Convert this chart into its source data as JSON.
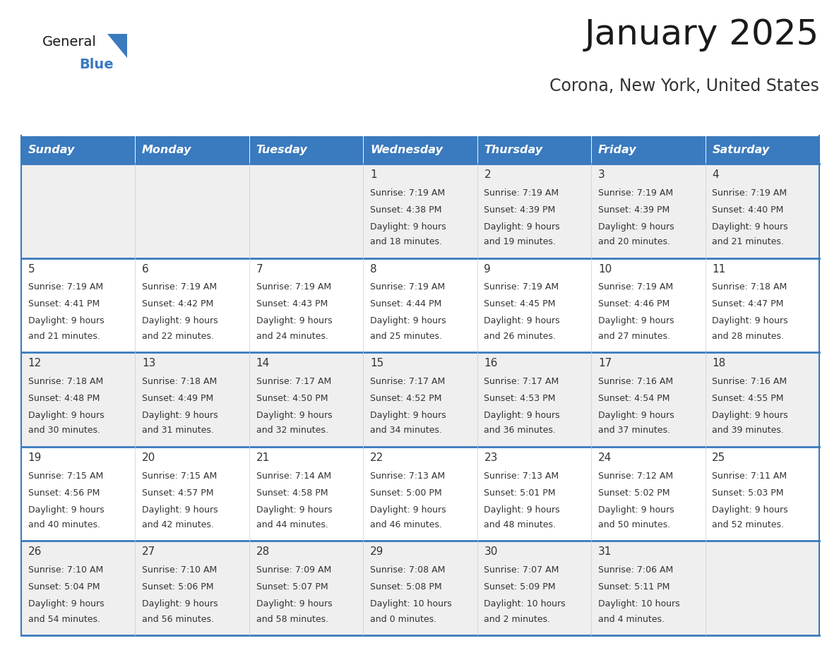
{
  "title": "January 2025",
  "subtitle": "Corona, New York, United States",
  "days_of_week": [
    "Sunday",
    "Monday",
    "Tuesday",
    "Wednesday",
    "Thursday",
    "Friday",
    "Saturday"
  ],
  "header_bg": "#3a7abf",
  "header_text_color": "#ffffff",
  "cell_bg_odd": "#efefef",
  "cell_bg_even": "#ffffff",
  "cell_text_color": "#333333",
  "grid_color": "#3a7abf",
  "separator_color": "#3a7abf",
  "calendar_data": [
    [
      {
        "day": "",
        "sunrise": "",
        "sunset": "",
        "daylight": ""
      },
      {
        "day": "",
        "sunrise": "",
        "sunset": "",
        "daylight": ""
      },
      {
        "day": "",
        "sunrise": "",
        "sunset": "",
        "daylight": ""
      },
      {
        "day": "1",
        "sunrise": "7:19 AM",
        "sunset": "4:38 PM",
        "daylight": "9 hours\nand 18 minutes."
      },
      {
        "day": "2",
        "sunrise": "7:19 AM",
        "sunset": "4:39 PM",
        "daylight": "9 hours\nand 19 minutes."
      },
      {
        "day": "3",
        "sunrise": "7:19 AM",
        "sunset": "4:39 PM",
        "daylight": "9 hours\nand 20 minutes."
      },
      {
        "day": "4",
        "sunrise": "7:19 AM",
        "sunset": "4:40 PM",
        "daylight": "9 hours\nand 21 minutes."
      }
    ],
    [
      {
        "day": "5",
        "sunrise": "7:19 AM",
        "sunset": "4:41 PM",
        "daylight": "9 hours\nand 21 minutes."
      },
      {
        "day": "6",
        "sunrise": "7:19 AM",
        "sunset": "4:42 PM",
        "daylight": "9 hours\nand 22 minutes."
      },
      {
        "day": "7",
        "sunrise": "7:19 AM",
        "sunset": "4:43 PM",
        "daylight": "9 hours\nand 24 minutes."
      },
      {
        "day": "8",
        "sunrise": "7:19 AM",
        "sunset": "4:44 PM",
        "daylight": "9 hours\nand 25 minutes."
      },
      {
        "day": "9",
        "sunrise": "7:19 AM",
        "sunset": "4:45 PM",
        "daylight": "9 hours\nand 26 minutes."
      },
      {
        "day": "10",
        "sunrise": "7:19 AM",
        "sunset": "4:46 PM",
        "daylight": "9 hours\nand 27 minutes."
      },
      {
        "day": "11",
        "sunrise": "7:18 AM",
        "sunset": "4:47 PM",
        "daylight": "9 hours\nand 28 minutes."
      }
    ],
    [
      {
        "day": "12",
        "sunrise": "7:18 AM",
        "sunset": "4:48 PM",
        "daylight": "9 hours\nand 30 minutes."
      },
      {
        "day": "13",
        "sunrise": "7:18 AM",
        "sunset": "4:49 PM",
        "daylight": "9 hours\nand 31 minutes."
      },
      {
        "day": "14",
        "sunrise": "7:17 AM",
        "sunset": "4:50 PM",
        "daylight": "9 hours\nand 32 minutes."
      },
      {
        "day": "15",
        "sunrise": "7:17 AM",
        "sunset": "4:52 PM",
        "daylight": "9 hours\nand 34 minutes."
      },
      {
        "day": "16",
        "sunrise": "7:17 AM",
        "sunset": "4:53 PM",
        "daylight": "9 hours\nand 36 minutes."
      },
      {
        "day": "17",
        "sunrise": "7:16 AM",
        "sunset": "4:54 PM",
        "daylight": "9 hours\nand 37 minutes."
      },
      {
        "day": "18",
        "sunrise": "7:16 AM",
        "sunset": "4:55 PM",
        "daylight": "9 hours\nand 39 minutes."
      }
    ],
    [
      {
        "day": "19",
        "sunrise": "7:15 AM",
        "sunset": "4:56 PM",
        "daylight": "9 hours\nand 40 minutes."
      },
      {
        "day": "20",
        "sunrise": "7:15 AM",
        "sunset": "4:57 PM",
        "daylight": "9 hours\nand 42 minutes."
      },
      {
        "day": "21",
        "sunrise": "7:14 AM",
        "sunset": "4:58 PM",
        "daylight": "9 hours\nand 44 minutes."
      },
      {
        "day": "22",
        "sunrise": "7:13 AM",
        "sunset": "5:00 PM",
        "daylight": "9 hours\nand 46 minutes."
      },
      {
        "day": "23",
        "sunrise": "7:13 AM",
        "sunset": "5:01 PM",
        "daylight": "9 hours\nand 48 minutes."
      },
      {
        "day": "24",
        "sunrise": "7:12 AM",
        "sunset": "5:02 PM",
        "daylight": "9 hours\nand 50 minutes."
      },
      {
        "day": "25",
        "sunrise": "7:11 AM",
        "sunset": "5:03 PM",
        "daylight": "9 hours\nand 52 minutes."
      }
    ],
    [
      {
        "day": "26",
        "sunrise": "7:10 AM",
        "sunset": "5:04 PM",
        "daylight": "9 hours\nand 54 minutes."
      },
      {
        "day": "27",
        "sunrise": "7:10 AM",
        "sunset": "5:06 PM",
        "daylight": "9 hours\nand 56 minutes."
      },
      {
        "day": "28",
        "sunrise": "7:09 AM",
        "sunset": "5:07 PM",
        "daylight": "9 hours\nand 58 minutes."
      },
      {
        "day": "29",
        "sunrise": "7:08 AM",
        "sunset": "5:08 PM",
        "daylight": "10 hours\nand 0 minutes."
      },
      {
        "day": "30",
        "sunrise": "7:07 AM",
        "sunset": "5:09 PM",
        "daylight": "10 hours\nand 2 minutes."
      },
      {
        "day": "31",
        "sunrise": "7:06 AM",
        "sunset": "5:11 PM",
        "daylight": "10 hours\nand 4 minutes."
      },
      {
        "day": "",
        "sunrise": "",
        "sunset": "",
        "daylight": ""
      }
    ]
  ]
}
